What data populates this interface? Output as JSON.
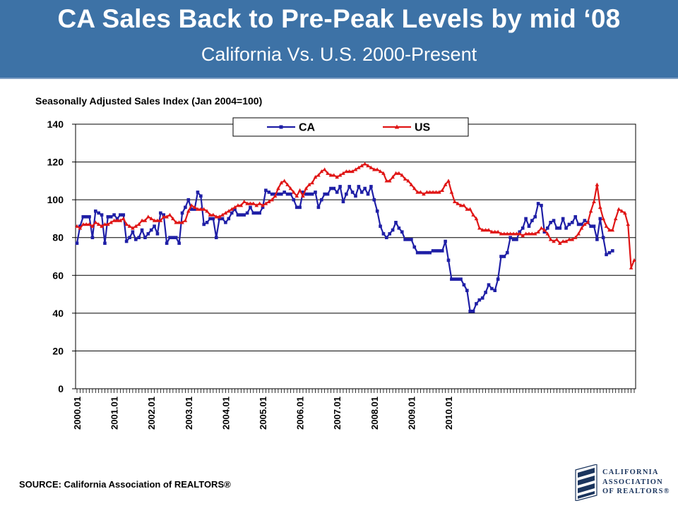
{
  "header": {
    "title": "CA Sales Back to Pre-Peak Levels by mid ‘08",
    "subtitle": "California Vs. U.S. 2000-Present"
  },
  "source": "SOURCE: California Association of REALTORS®",
  "logo": {
    "line1": "CALIFORNIA",
    "line2": "ASSOCIATION",
    "line3": "OF REALTORS®"
  },
  "colors": {
    "banner": "#3d72a6",
    "ca": "#1f1fa6",
    "us": "#e01616"
  },
  "chart_data": {
    "type": "line",
    "title": "Seasonally Adjusted Sales Index (Jan 2004=100)",
    "ylim": [
      0,
      140
    ],
    "y_ticks": [
      0,
      20,
      40,
      60,
      80,
      100,
      120,
      140
    ],
    "x_tick_labels": [
      "2000.01",
      "2001.01",
      "2002.01",
      "2003.01",
      "2004.01",
      "2005.01",
      "2006.01",
      "2007.01",
      "2008.01",
      "2009.01",
      "2010.01"
    ],
    "grid": "horizontal",
    "legend_position": "top-center",
    "series": [
      {
        "name": "CA",
        "marker": "square",
        "values": [
          77,
          86,
          91,
          91,
          91,
          80,
          94,
          93,
          92,
          77,
          91,
          91,
          92,
          90,
          92,
          92,
          78,
          80,
          83,
          79,
          80,
          84,
          80,
          82,
          84,
          86,
          82,
          93,
          92,
          77,
          80,
          80,
          80,
          77,
          93,
          96,
          100,
          95,
          95,
          104,
          102,
          87,
          88,
          90,
          90,
          80,
          90,
          90,
          88,
          90,
          93,
          95,
          92,
          92,
          92,
          93,
          96,
          93,
          93,
          93,
          96,
          105,
          104,
          103,
          103,
          103,
          103,
          104,
          103,
          103,
          100,
          96,
          96,
          104,
          103,
          103,
          103,
          104,
          96,
          100,
          103,
          103,
          106,
          106,
          104,
          107,
          99,
          103,
          107,
          104,
          102,
          107,
          104,
          106,
          103,
          107,
          100,
          94,
          86,
          82,
          80,
          82,
          84,
          88,
          85,
          83,
          79,
          79,
          79,
          75,
          72,
          72,
          72,
          72,
          72,
          73,
          73,
          73,
          73,
          78,
          68,
          58,
          58,
          58,
          58,
          55,
          52,
          41,
          41,
          45,
          47,
          48,
          51,
          55,
          53,
          52,
          58,
          70,
          70,
          72,
          80,
          79,
          79,
          83,
          85,
          90,
          86,
          89,
          91,
          98,
          97,
          83,
          85,
          88,
          89,
          85,
          85,
          90,
          85,
          87,
          88,
          91,
          87,
          87,
          89,
          88,
          86,
          86,
          79,
          90,
          80,
          71,
          72,
          73
        ]
      },
      {
        "name": "US",
        "marker": "triangle",
        "values": [
          86,
          85,
          87,
          87,
          87,
          86,
          88,
          87,
          86,
          87,
          87,
          88,
          89,
          89,
          89,
          90,
          87,
          86,
          85,
          86,
          87,
          89,
          89,
          91,
          90,
          89,
          89,
          89,
          91,
          91,
          92,
          90,
          88,
          88,
          88,
          89,
          94,
          97,
          96,
          95,
          95,
          95,
          94,
          92,
          92,
          91,
          91,
          92,
          93,
          94,
          95,
          96,
          97,
          97,
          99,
          98,
          98,
          98,
          97,
          98,
          97,
          98,
          99,
          100,
          102,
          106,
          109,
          110,
          108,
          106,
          104,
          102,
          105,
          102,
          106,
          108,
          109,
          112,
          113,
          115,
          116,
          114,
          113,
          113,
          112,
          113,
          114,
          115,
          115,
          115,
          116,
          117,
          118,
          119,
          118,
          117,
          116,
          116,
          115,
          114,
          110,
          110,
          112,
          114,
          114,
          113,
          111,
          110,
          108,
          106,
          104,
          104,
          103,
          104,
          104,
          104,
          104,
          104,
          105,
          108,
          110,
          104,
          99,
          98,
          97,
          97,
          95,
          95,
          92,
          90,
          85,
          84,
          84,
          84,
          83,
          83,
          83,
          82,
          82,
          82,
          82,
          82,
          82,
          82,
          81,
          82,
          82,
          82,
          82,
          83,
          85,
          84,
          82,
          79,
          78,
          79,
          77,
          78,
          78,
          79,
          79,
          80,
          82,
          85,
          87,
          88,
          94,
          99,
          108,
          96,
          90,
          86,
          84,
          84,
          90,
          95,
          94,
          93,
          87,
          64,
          68
        ]
      }
    ]
  }
}
